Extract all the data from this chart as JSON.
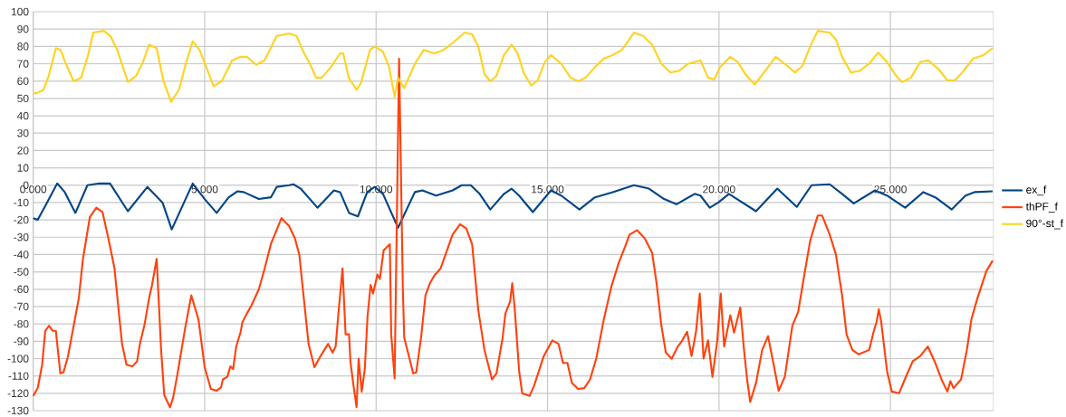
{
  "chart_data": {
    "type": "line",
    "xlim": [
      0,
      28
    ],
    "ylim": [
      -130,
      100
    ],
    "xticks": [
      {
        "value": 0,
        "label": "0.000"
      },
      {
        "value": 5,
        "label": "5.000"
      },
      {
        "value": 10,
        "label": "10.000"
      },
      {
        "value": 15,
        "label": "15.000"
      },
      {
        "value": 20,
        "label": "20.000"
      },
      {
        "value": 25,
        "label": "25.000"
      }
    ],
    "yticks": [
      -130,
      -120,
      -110,
      -100,
      -90,
      -80,
      -70,
      -60,
      -50,
      -40,
      -30,
      -20,
      -10,
      0,
      10,
      20,
      30,
      40,
      50,
      60,
      70,
      80,
      90,
      100
    ],
    "grid": true,
    "legend": "right",
    "series": [
      {
        "name": "ex_f",
        "color": "#004586",
        "x": [
          0,
          0.13,
          0.35,
          0.7,
          0.92,
          1.23,
          1.58,
          1.93,
          2.24,
          2.76,
          3.33,
          3.77,
          4.04,
          4.65,
          5.0,
          5.35,
          5.7,
          5.96,
          6.14,
          6.58,
          6.93,
          7.1,
          7.46,
          7.59,
          7.8,
          8.29,
          8.77,
          8.95,
          9.21,
          9.47,
          9.74,
          9.96,
          10.2,
          10.64,
          11.13,
          11.35,
          11.75,
          12.23,
          12.5,
          12.76,
          13.02,
          13.33,
          13.73,
          13.95,
          14.17,
          14.57,
          15.1,
          15.4,
          15.93,
          16.38,
          16.9,
          17.52,
          17.96,
          18.4,
          18.76,
          19.29,
          19.46,
          19.73,
          19.98,
          20.29,
          21.08,
          21.7,
          22.27,
          22.7,
          23.23,
          23.59,
          23.93,
          24.55,
          24.9,
          25.43,
          25.96,
          26.31,
          26.79,
          27.19,
          27.45,
          27.98
        ],
        "values": [
          -19,
          -20,
          -12,
          1,
          -4,
          -16,
          0,
          1,
          1,
          -15,
          -1,
          -10,
          -25.5,
          1,
          -8,
          -16,
          -7,
          -3.5,
          -4,
          -8,
          -7,
          -1,
          0,
          0.5,
          -2,
          -13,
          -3,
          -4,
          -16,
          -18,
          -4,
          -1,
          -5,
          -24.5,
          -4,
          -3,
          -6,
          -3,
          0,
          0,
          -5,
          -14,
          -5,
          -2,
          -6,
          -15.5,
          -3,
          -6,
          -14,
          -7,
          -4,
          0,
          -2,
          -8,
          -11,
          -5,
          -6,
          -13,
          -10,
          -5,
          -15,
          -2,
          -12.5,
          0,
          0.5,
          -5,
          -10.5,
          -3,
          -6,
          -13,
          -4,
          -7,
          -14,
          -6,
          -4,
          -3.5
        ]
      },
      {
        "name": "thPF_f",
        "color": "#ff420e",
        "x": [
          0,
          0.13,
          0.26,
          0.35,
          0.46,
          0.57,
          0.66,
          0.79,
          0.88,
          1.01,
          1.18,
          1.33,
          1.45,
          1.65,
          1.84,
          2.02,
          2.19,
          2.37,
          2.5,
          2.59,
          2.72,
          2.89,
          3.03,
          3.11,
          3.25,
          3.38,
          3.46,
          3.6,
          3.73,
          3.82,
          3.99,
          4.08,
          4.21,
          4.43,
          4.61,
          4.82,
          5.0,
          5.18,
          5.35,
          5.48,
          5.53,
          5.66,
          5.75,
          5.83,
          5.92,
          6.05,
          6.1,
          6.23,
          6.36,
          6.58,
          6.75,
          6.93,
          7.24,
          7.46,
          7.63,
          7.76,
          7.89,
          8.03,
          8.2,
          8.38,
          8.6,
          8.73,
          8.82,
          8.9,
          9.02,
          9.11,
          9.21,
          9.25,
          9.34,
          9.43,
          9.49,
          9.58,
          9.67,
          9.75,
          9.84,
          9.91,
          10.04,
          10.11,
          10.22,
          10.4,
          10.44,
          10.54,
          10.67,
          10.78,
          10.82,
          10.95,
          11.08,
          11.17,
          11.31,
          11.44,
          11.57,
          11.7,
          11.88,
          12.05,
          12.23,
          12.45,
          12.63,
          12.8,
          12.98,
          13.16,
          13.38,
          13.51,
          13.69,
          13.77,
          13.91,
          13.97,
          14.04,
          14.17,
          14.26,
          14.48,
          14.61,
          14.88,
          15.14,
          15.32,
          15.45,
          15.58,
          15.71,
          15.89,
          16.07,
          16.24,
          16.42,
          16.64,
          16.86,
          17.08,
          17.26,
          17.39,
          17.61,
          17.83,
          18.05,
          18.18,
          18.32,
          18.45,
          18.62,
          18.8,
          18.93,
          19.07,
          19.2,
          19.33,
          19.44,
          19.55,
          19.68,
          19.81,
          19.95,
          20.05,
          20.15,
          20.33,
          20.44,
          20.62,
          20.73,
          20.82,
          20.91,
          21.08,
          21.26,
          21.43,
          21.61,
          21.74,
          21.92,
          22.14,
          22.31,
          22.49,
          22.66,
          22.88,
          23.01,
          23.23,
          23.41,
          23.59,
          23.72,
          23.89,
          24.07,
          24.38,
          24.51,
          24.6,
          24.66,
          24.73,
          24.9,
          25.04,
          25.25,
          25.43,
          25.65,
          25.87,
          26.09,
          26.31,
          26.49,
          26.66,
          26.75,
          26.84,
          27.06,
          27.23,
          27.36,
          27.54,
          27.8,
          27.98
        ],
        "values": [
          -121.5,
          -117,
          -103.5,
          -84,
          -81,
          -84,
          -84,
          -108.5,
          -108,
          -99,
          -81,
          -65,
          -42.5,
          -18.5,
          -13,
          -15.5,
          -30.5,
          -48,
          -74,
          -91.5,
          -103.5,
          -104.5,
          -101.5,
          -91.5,
          -80,
          -65,
          -58,
          -42.5,
          -95,
          -121,
          -128,
          -122.5,
          -108.5,
          -82.5,
          -63.5,
          -77.5,
          -105,
          -117.5,
          -118.5,
          -116.5,
          -112,
          -110.5,
          -104.5,
          -106,
          -93,
          -84.5,
          -79,
          -74,
          -69.5,
          -60,
          -48,
          -34,
          -19,
          -23.5,
          -30.5,
          -40,
          -65,
          -91.5,
          -105,
          -98.5,
          -91.5,
          -96.5,
          -93,
          -74,
          -48,
          -86,
          -86,
          -101.5,
          -115.5,
          -128,
          -100,
          -119,
          -106,
          -75.5,
          -57.5,
          -62.5,
          -51.5,
          -54,
          -37.5,
          -34,
          -86,
          -111.5,
          73,
          -60,
          -88,
          -98,
          -108.5,
          -108,
          -88,
          -63.5,
          -56.5,
          -52,
          -48,
          -38.5,
          -28.5,
          -22.5,
          -25,
          -34,
          -72,
          -95,
          -112,
          -108.5,
          -88,
          -74,
          -67,
          -56.5,
          -70.5,
          -107,
          -120,
          -121.5,
          -115.5,
          -99,
          -89.5,
          -91.5,
          -102.5,
          -102.5,
          -114,
          -117.5,
          -117,
          -112,
          -100,
          -77.5,
          -58.5,
          -44.5,
          -35.5,
          -28.5,
          -26,
          -30.5,
          -39,
          -56.5,
          -81,
          -96.5,
          -100,
          -93,
          -89.5,
          -84.5,
          -98.5,
          -84.5,
          -62.5,
          -100,
          -89.5,
          -110.5,
          -89.5,
          -62.5,
          -93,
          -75,
          -85,
          -70.5,
          -95,
          -112,
          -125,
          -114,
          -95,
          -87,
          -105,
          -118.5,
          -110.5,
          -81,
          -73,
          -51.5,
          -32,
          -17.5,
          -17.5,
          -28.5,
          -40,
          -63.5,
          -86,
          -95,
          -97.5,
          -95,
          -84.5,
          -78.5,
          -71.5,
          -78.5,
          -107,
          -119,
          -120,
          -111.5,
          -101.5,
          -98.5,
          -93,
          -102.5,
          -112,
          -119,
          -113,
          -117,
          -112,
          -95,
          -77.5,
          -65,
          -49.5,
          -43.5
        ]
      },
      {
        "name": "90°-st_f",
        "color": "#ffd320",
        "x": [
          0,
          0.1,
          0.3,
          0.45,
          0.66,
          0.8,
          0.95,
          1.18,
          1.4,
          1.6,
          1.75,
          2.06,
          2.25,
          2.45,
          2.76,
          3.0,
          3.2,
          3.38,
          3.6,
          3.8,
          4.02,
          4.25,
          4.45,
          4.65,
          4.85,
          5.05,
          5.26,
          5.5,
          5.8,
          6.05,
          6.23,
          6.5,
          6.75,
          7.1,
          7.46,
          7.68,
          7.9,
          8.07,
          8.25,
          8.42,
          8.68,
          8.95,
          9.04,
          9.2,
          9.43,
          9.56,
          9.82,
          9.96,
          10.2,
          10.38,
          10.54,
          10.64,
          10.82,
          11.13,
          11.39,
          11.7,
          11.97,
          12.23,
          12.58,
          12.8,
          12.98,
          13.16,
          13.33,
          13.51,
          13.73,
          13.95,
          14.13,
          14.3,
          14.52,
          14.7,
          14.92,
          15.1,
          15.4,
          15.67,
          15.9,
          16.11,
          16.38,
          16.64,
          16.9,
          17.17,
          17.52,
          17.79,
          18.05,
          18.32,
          18.58,
          18.84,
          19.1,
          19.46,
          19.68,
          19.86,
          20.03,
          20.33,
          20.55,
          20.77,
          21.04,
          21.39,
          21.65,
          21.92,
          22.22,
          22.44,
          22.66,
          22.88,
          23.23,
          23.41,
          23.59,
          23.85,
          24.11,
          24.38,
          24.64,
          24.9,
          25.17,
          25.34,
          25.6,
          25.87,
          26.09,
          26.4,
          26.66,
          26.88,
          27.1,
          27.41,
          27.72,
          27.98
        ],
        "values": [
          53,
          53,
          55,
          63,
          79,
          78,
          70,
          60,
          62,
          75,
          88,
          89,
          86,
          78,
          59.5,
          63,
          71,
          81,
          79,
          60,
          48,
          55,
          70,
          83,
          78,
          68,
          57,
          60,
          72,
          74,
          74,
          69.5,
          72,
          86,
          87.5,
          86,
          76,
          70,
          62,
          62,
          68,
          76,
          76,
          62,
          55,
          59,
          78,
          80,
          77,
          68,
          51,
          62,
          56,
          70,
          78,
          76,
          78,
          82,
          88,
          87,
          80,
          64,
          60,
          63,
          75,
          81,
          76,
          65,
          57.5,
          60,
          71,
          75,
          70,
          62,
          60,
          62,
          68,
          73,
          75,
          78,
          88,
          86,
          81,
          70,
          65,
          66,
          70,
          72,
          62,
          61,
          68,
          74,
          71,
          64,
          58,
          67,
          74,
          70,
          65,
          69,
          80,
          89,
          88,
          84,
          74,
          65,
          66,
          70,
          76.5,
          71,
          63,
          59.5,
          62,
          71,
          72,
          67,
          60.5,
          60.5,
          65,
          73,
          75,
          79
        ]
      }
    ]
  }
}
